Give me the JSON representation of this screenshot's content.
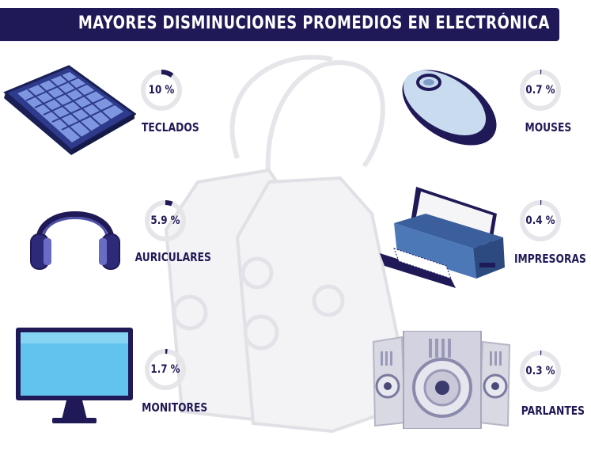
{
  "title": "MAYORES DISMINUCIONES PROMEDIOS EN ELECTRÓNICA",
  "colors": {
    "dark": "#1f1a57",
    "track": "#e6e6ea",
    "accent": "#1f1a57"
  },
  "chart_data": {
    "type": "bar",
    "title": "MAYORES DISMINUCIONES PROMEDIOS EN ELECTRÓNICA",
    "unit": "%",
    "categories": [
      "TECLADOS",
      "AURICULARES",
      "MONITORES",
      "MOUSES",
      "IMPRESORAS",
      "PARLANTES"
    ],
    "values": [
      10,
      5.9,
      1.7,
      0.7,
      0.4,
      0.3
    ],
    "value_labels": [
      "10 %",
      "5.9 %",
      "1.7 %",
      "0.7 %",
      "0.4 %",
      "0.3 %"
    ],
    "icons": [
      "keyboard-icon",
      "headphones-icon",
      "monitor-icon",
      "mouse-icon",
      "printer-icon",
      "speakers-icon"
    ]
  }
}
